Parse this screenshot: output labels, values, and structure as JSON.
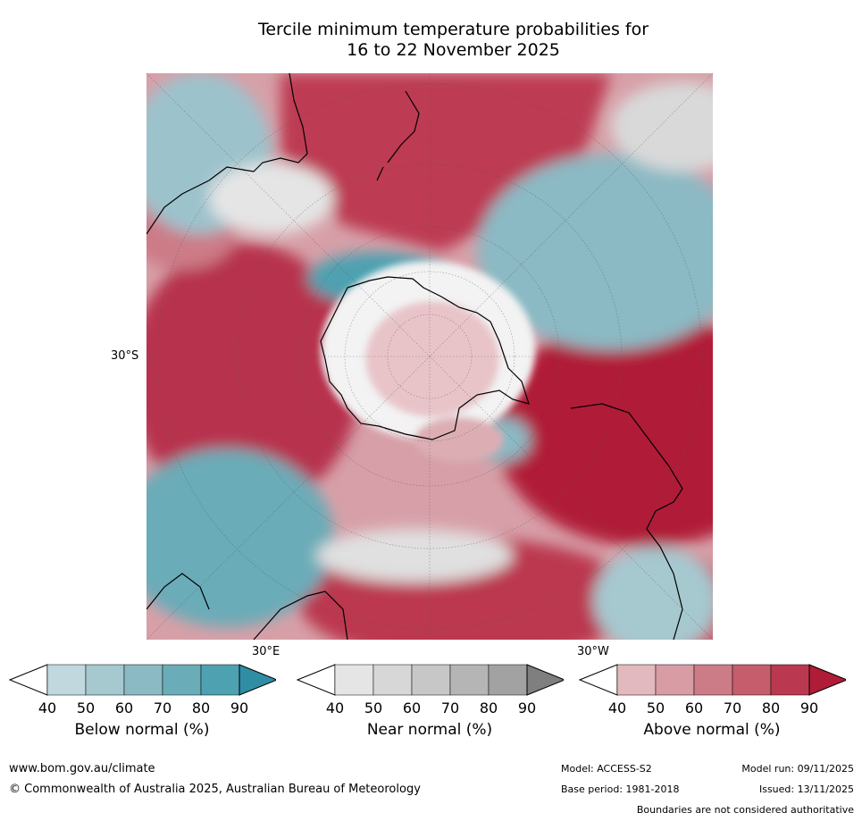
{
  "title": {
    "line1": "Tercile minimum temperature probabilities for",
    "line2": "16 to 22 November 2025"
  },
  "map": {
    "lat_label": "30°S",
    "lon_label_left": "30°E",
    "lon_label_right": "30°W"
  },
  "colorbars": [
    {
      "label": "Below normal (%)",
      "ticks": [
        "40",
        "50",
        "60",
        "70",
        "80",
        "90"
      ],
      "colors": [
        "#ffffff",
        "#c0d8de",
        "#a6c8cf",
        "#8bb9c4",
        "#6aacb8",
        "#4da1b0",
        "#2f8ea3"
      ]
    },
    {
      "label": "Near normal (%)",
      "ticks": [
        "40",
        "50",
        "60",
        "70",
        "80",
        "90"
      ],
      "colors": [
        "#ffffff",
        "#e5e5e5",
        "#d7d7d7",
        "#c7c7c7",
        "#b5b5b5",
        "#a2a2a2",
        "#7f7f7f"
      ]
    },
    {
      "label": "Above normal (%)",
      "ticks": [
        "40",
        "50",
        "60",
        "70",
        "80",
        "90"
      ],
      "colors": [
        "#ffffff",
        "#e2b9bf",
        "#d79ca4",
        "#cc7c87",
        "#c55d6c",
        "#bb3950",
        "#b01c37"
      ]
    }
  ],
  "footer": {
    "website": "www.bom.gov.au/climate",
    "copyright": "© Commonwealth of Australia 2025, Australian Bureau of Meteorology",
    "model": "Model: ACCESS-S2",
    "base_period": "Base period: 1981-2018",
    "model_run": "Model run: 09/11/2025",
    "issued": "Issued: 13/11/2025",
    "disclaimer": "Boundaries are not considered authoritative"
  }
}
